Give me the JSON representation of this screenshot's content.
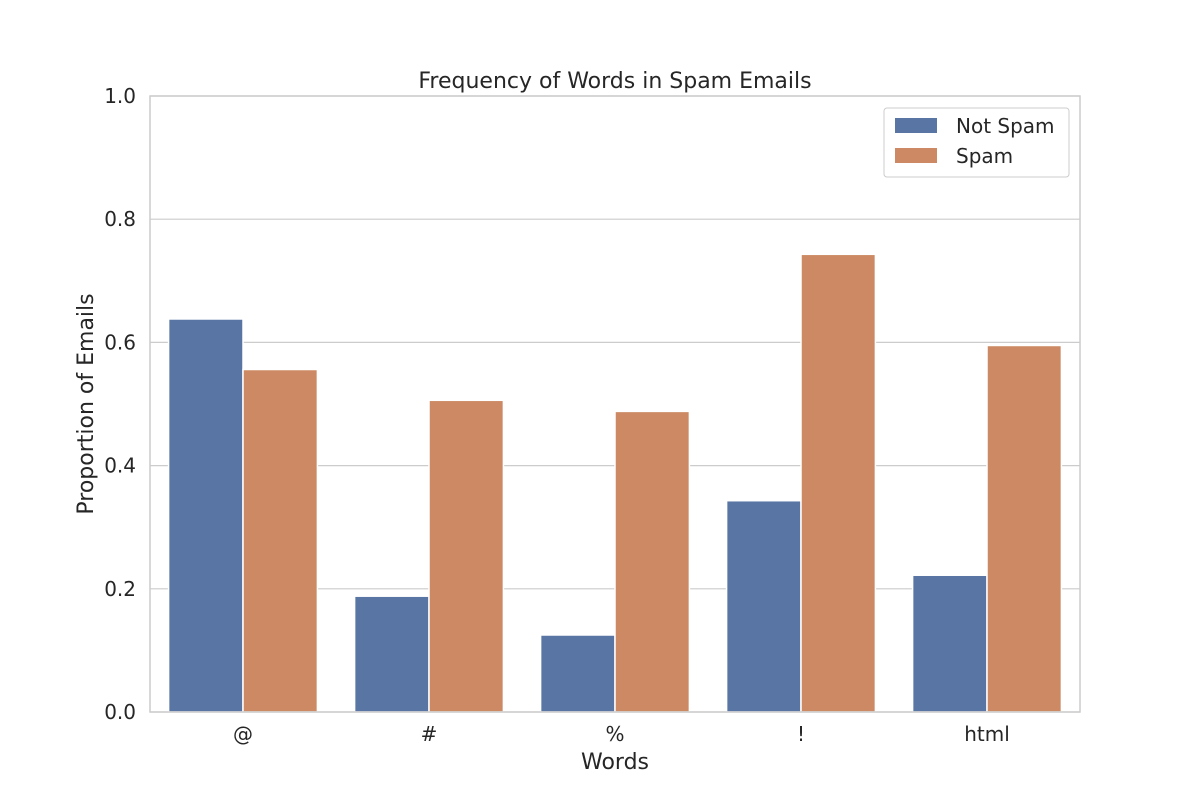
{
  "chart_data": {
    "type": "bar",
    "title": "Frequency of Words in Spam Emails",
    "xlabel": "Words",
    "ylabel": "Proportion of Emails",
    "categories": [
      "@",
      "#",
      "%",
      "!",
      "html"
    ],
    "series": [
      {
        "name": "Not Spam",
        "values": [
          0.638,
          0.188,
          0.125,
          0.343,
          0.222
        ],
        "color": "#5975a4"
      },
      {
        "name": "Spam",
        "values": [
          0.556,
          0.506,
          0.488,
          0.743,
          0.595
        ],
        "color": "#cc8963"
      }
    ],
    "ylim": [
      0,
      1.0
    ],
    "yticks": [
      "0.0",
      "0.2",
      "0.4",
      "0.6",
      "0.8",
      "1.0"
    ],
    "grid": true,
    "legend_position": "top-right"
  }
}
